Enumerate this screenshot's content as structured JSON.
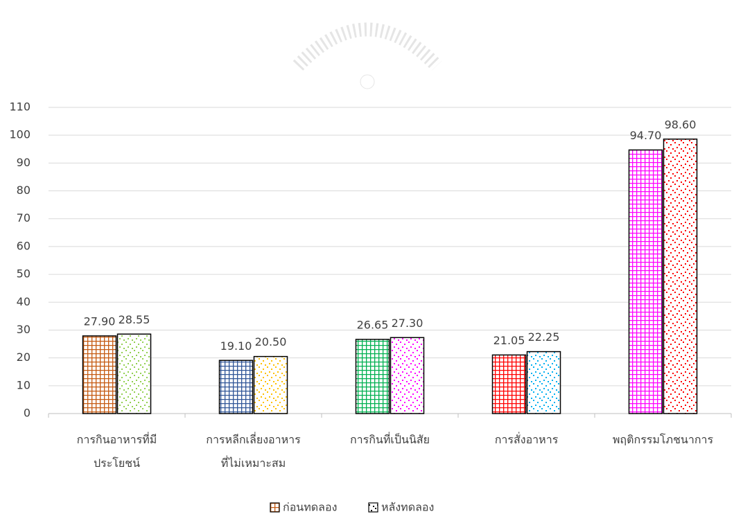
{
  "chart_data": {
    "type": "bar",
    "categories": [
      "การกินอาหารที่มี\nประโยชน์",
      "การหลีกเลี่ยงอาหาร\nที่ไม่เหมาะสม",
      "การกินที่เป็นนิสัย",
      "การสั่งอาหาร",
      "พฤติกรรมโภชนาการ"
    ],
    "series": [
      {
        "name": "ก่อนทดลอง",
        "pattern": "grid",
        "color": "#c55a11",
        "colors": [
          "#c55a11",
          "#2f5597",
          "#00b050",
          "#ff0000",
          "#ff00ff"
        ],
        "values": [
          27.9,
          19.1,
          26.65,
          21.05,
          94.7
        ],
        "value_labels": [
          "27.90",
          "19.10",
          "26.65",
          "21.05",
          "94.70"
        ]
      },
      {
        "name": "หลังทดลอง",
        "pattern": "dots",
        "color": "#000000",
        "colors": [
          "#92d050",
          "#ffc000",
          "#ff00ff",
          "#00b0f0",
          "#ff0000"
        ],
        "values": [
          28.55,
          20.5,
          27.3,
          22.25,
          98.6
        ],
        "value_labels": [
          "28.55",
          "20.50",
          "27.30",
          "22.25",
          "98.60"
        ]
      }
    ],
    "ylim": [
      0,
      110
    ],
    "yticks": [
      0,
      10,
      20,
      30,
      40,
      50,
      60,
      70,
      80,
      90,
      100,
      110
    ],
    "grid": true,
    "legend": "bottom"
  }
}
